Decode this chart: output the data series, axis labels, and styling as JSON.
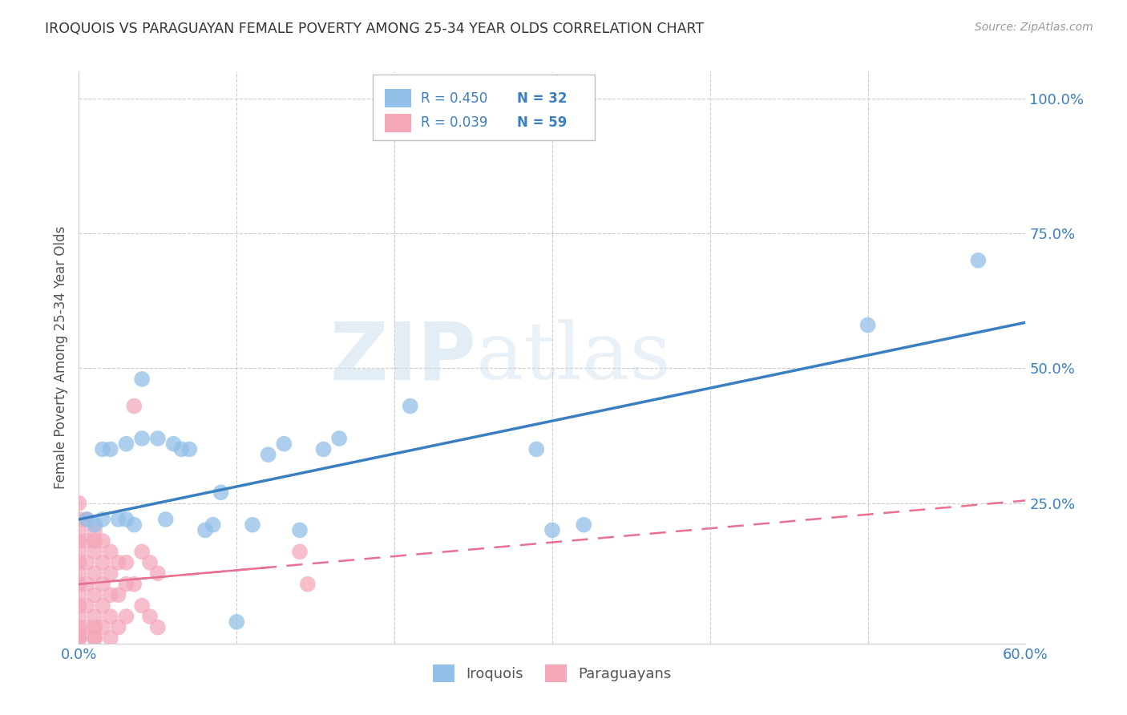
{
  "title": "IROQUOIS VS PARAGUAYAN FEMALE POVERTY AMONG 25-34 YEAR OLDS CORRELATION CHART",
  "source": "Source: ZipAtlas.com",
  "ylabel": "Female Poverty Among 25-34 Year Olds",
  "xlim": [
    0.0,
    0.6
  ],
  "ylim": [
    -0.01,
    1.05
  ],
  "iroquois_color": "#92c0e8",
  "paraguayan_color": "#f4a7b9",
  "iroquois_line_color": "#3a7fc1",
  "paraguayan_line_color": "#e87090",
  "R_iroquois": 0.45,
  "N_iroquois": 32,
  "R_paraguayan": 0.039,
  "N_paraguayan": 59,
  "watermark_zip": "ZIP",
  "watermark_atlas": "atlas",
  "iroquois_x": [
    0.005,
    0.01,
    0.015,
    0.015,
    0.02,
    0.025,
    0.03,
    0.03,
    0.035,
    0.04,
    0.04,
    0.05,
    0.055,
    0.06,
    0.065,
    0.07,
    0.08,
    0.085,
    0.09,
    0.1,
    0.11,
    0.12,
    0.13,
    0.14,
    0.155,
    0.165,
    0.21,
    0.29,
    0.3,
    0.32,
    0.5,
    0.57
  ],
  "iroquois_y": [
    0.22,
    0.21,
    0.35,
    0.22,
    0.35,
    0.22,
    0.36,
    0.22,
    0.21,
    0.48,
    0.37,
    0.37,
    0.22,
    0.36,
    0.35,
    0.35,
    0.2,
    0.21,
    0.27,
    0.03,
    0.21,
    0.34,
    0.36,
    0.2,
    0.35,
    0.37,
    0.43,
    0.35,
    0.2,
    0.21,
    0.58,
    0.7
  ],
  "paraguayan_x": [
    0.0,
    0.0,
    0.0,
    0.0,
    0.0,
    0.0,
    0.0,
    0.0,
    0.0,
    0.0,
    0.0,
    0.0,
    0.0,
    0.0,
    0.0,
    0.0,
    0.0,
    0.0,
    0.005,
    0.005,
    0.005,
    0.005,
    0.005,
    0.005,
    0.01,
    0.01,
    0.01,
    0.01,
    0.01,
    0.01,
    0.01,
    0.01,
    0.01,
    0.015,
    0.015,
    0.015,
    0.015,
    0.015,
    0.02,
    0.02,
    0.02,
    0.02,
    0.02,
    0.025,
    0.025,
    0.025,
    0.03,
    0.03,
    0.03,
    0.035,
    0.035,
    0.04,
    0.04,
    0.045,
    0.045,
    0.05,
    0.05,
    0.14,
    0.145
  ],
  "paraguayan_y": [
    0.25,
    0.22,
    0.2,
    0.18,
    0.16,
    0.14,
    0.12,
    0.1,
    0.08,
    0.06,
    0.04,
    0.02,
    0.01,
    0.005,
    0.0,
    0.0,
    0.0,
    0.0,
    0.22,
    0.18,
    0.14,
    0.1,
    0.06,
    0.02,
    0.2,
    0.18,
    0.16,
    0.12,
    0.08,
    0.04,
    0.02,
    0.0,
    0.0,
    0.18,
    0.14,
    0.1,
    0.06,
    0.02,
    0.16,
    0.12,
    0.08,
    0.04,
    0.0,
    0.14,
    0.08,
    0.02,
    0.14,
    0.1,
    0.04,
    0.43,
    0.1,
    0.16,
    0.06,
    0.14,
    0.04,
    0.12,
    0.02,
    0.16,
    0.1
  ],
  "irq_line_x0": 0.0,
  "irq_line_y0": 0.22,
  "irq_line_x1": 0.6,
  "irq_line_y1": 0.585,
  "par_line_x0": 0.0,
  "par_line_y0": 0.1,
  "par_line_x1": 0.6,
  "par_line_y1": 0.255,
  "background_color": "#ffffff",
  "grid_color": "#cccccc",
  "text_color": "#3a7fc1",
  "legend_text_color": "#3a7fc1"
}
